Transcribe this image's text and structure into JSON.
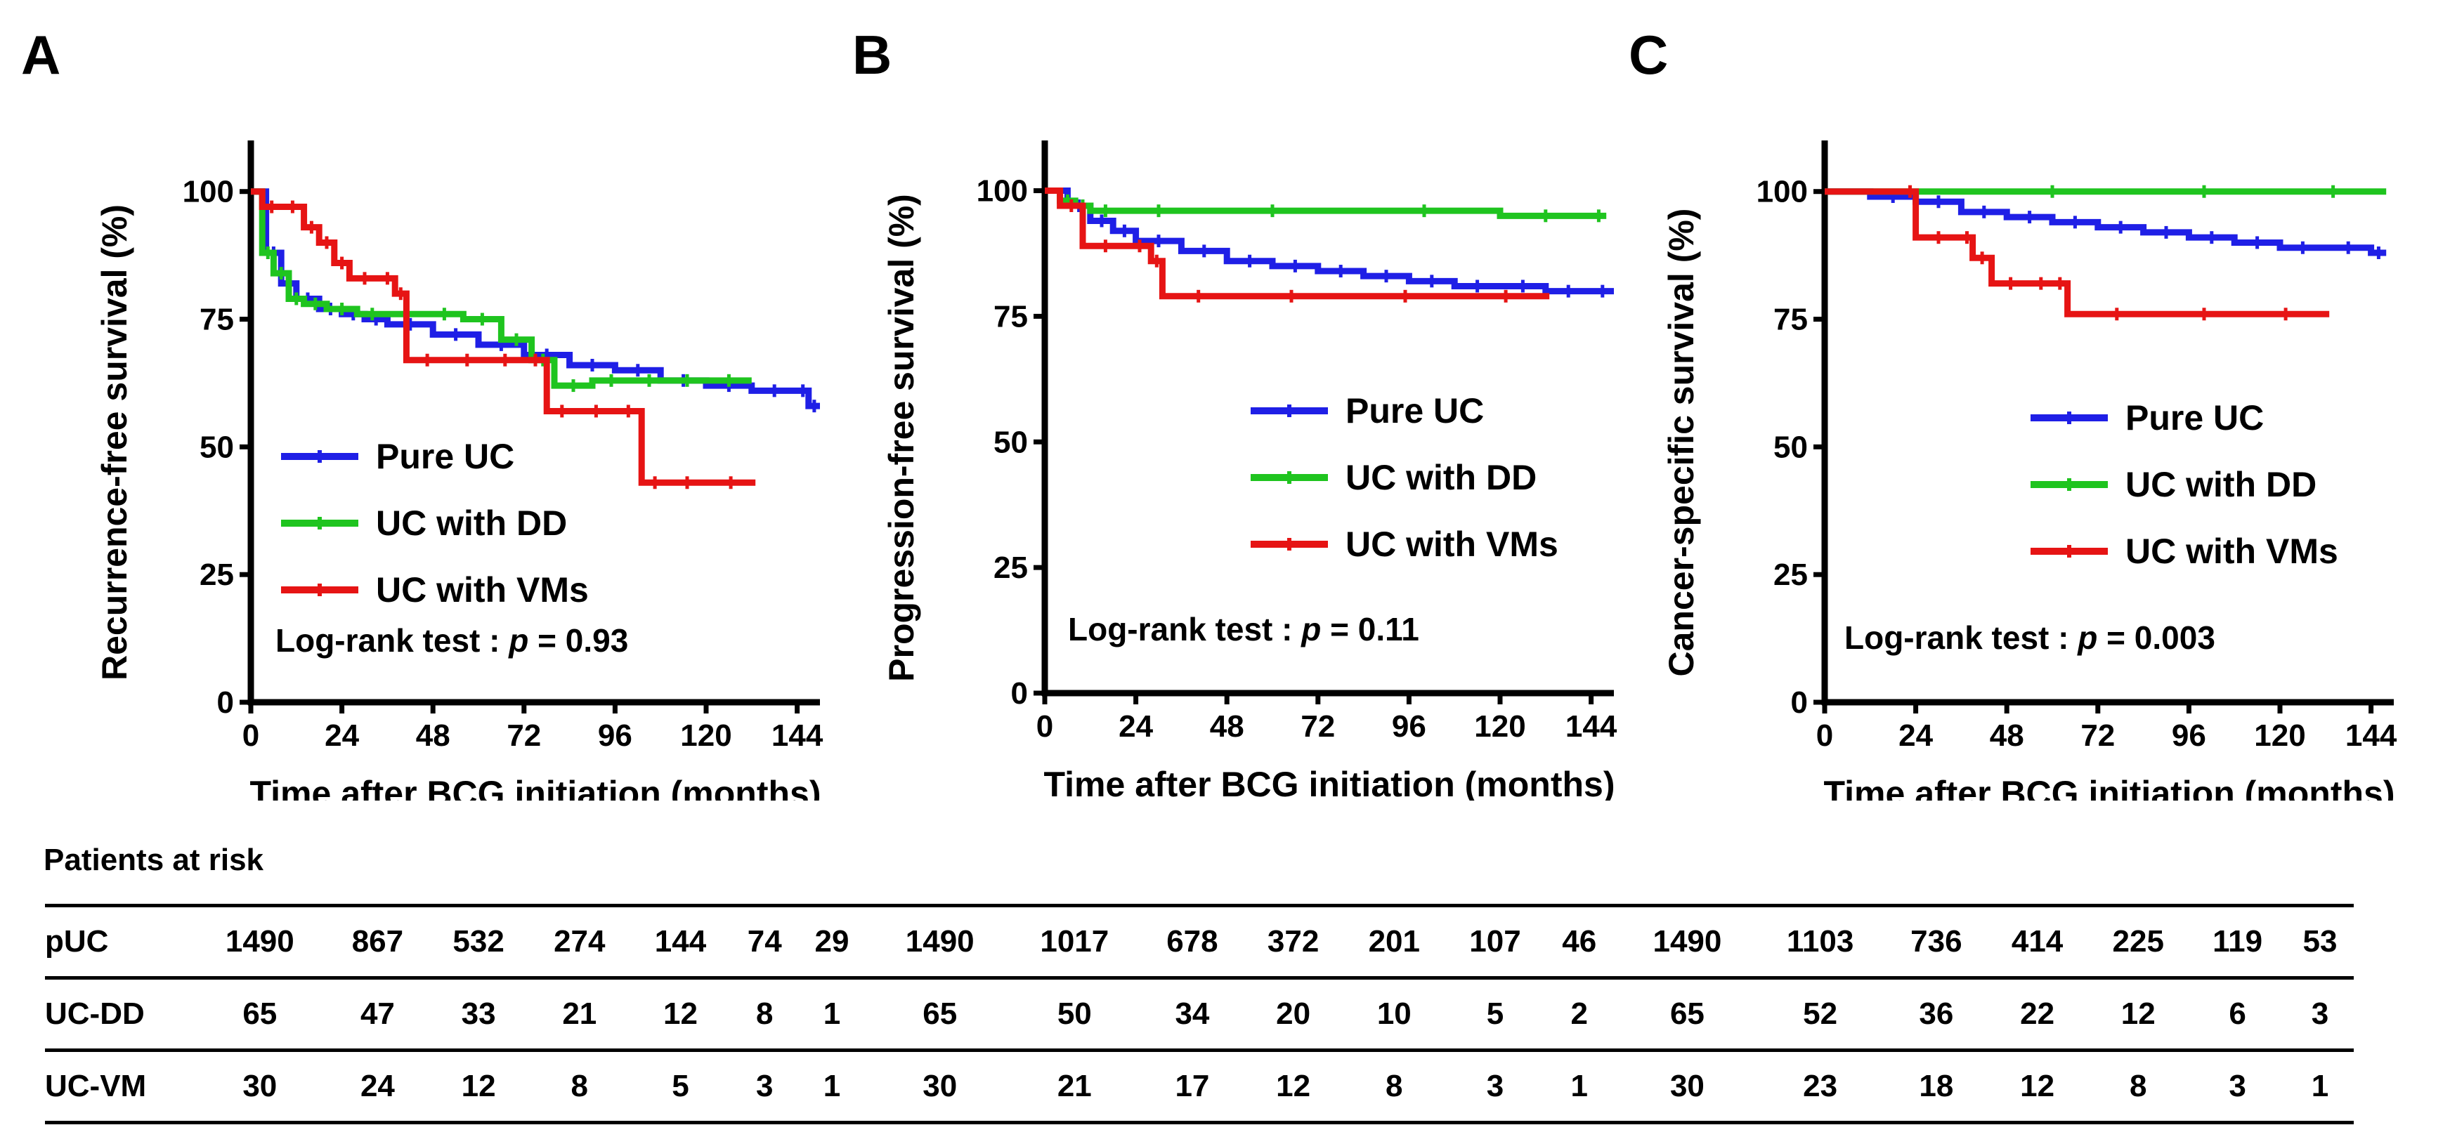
{
  "chart_data": [
    {
      "type": "line",
      "panel_label": "A",
      "ylabel": "Recurrence-free survival (%)",
      "xlabel": "Time after BCG initiation (months)",
      "xlim": [
        0,
        150
      ],
      "ylim": [
        0,
        110
      ],
      "xticks": [
        0,
        24,
        48,
        72,
        96,
        120,
        144
      ],
      "yticks": [
        0,
        25,
        50,
        75,
        100
      ],
      "annotation": "Log-rank test :",
      "p_symbol": "p",
      "p_text": " = 0.93",
      "series": [
        {
          "name": "Pure UC",
          "color": "#1f1fe6",
          "x": [
            0,
            4,
            8,
            12,
            18,
            24,
            30,
            36,
            48,
            60,
            72,
            84,
            96,
            108,
            120,
            132,
            144,
            147,
            150
          ],
          "y": [
            100,
            88,
            82,
            79,
            77,
            76,
            75,
            74,
            72,
            70,
            68,
            66,
            65,
            63,
            62,
            61,
            61,
            58,
            58
          ]
        },
        {
          "name": "UC with DD",
          "color": "#1fc41f",
          "x": [
            0,
            3,
            6,
            10,
            14,
            20,
            28,
            36,
            46,
            56,
            66,
            74,
            80,
            90,
            100,
            110,
            120,
            132
          ],
          "y": [
            100,
            88,
            84,
            79,
            78,
            77,
            76,
            76,
            76,
            75,
            71,
            67,
            62,
            63,
            63,
            63,
            63,
            63
          ]
        },
        {
          "name": "UC with VMs",
          "color": "#e61414",
          "x": [
            0,
            3,
            8,
            14,
            18,
            22,
            26,
            34,
            38,
            41,
            52,
            62,
            72,
            78,
            86,
            96,
            103,
            110,
            120,
            133
          ],
          "y": [
            100,
            97,
            97,
            93,
            90,
            86,
            83,
            83,
            80,
            67,
            67,
            67,
            67,
            57,
            57,
            57,
            43,
            43,
            43,
            43
          ]
        }
      ]
    },
    {
      "type": "line",
      "panel_label": "B",
      "ylabel": "Progression-free survival (%)",
      "xlabel": "Time after BCG initiation (months)",
      "xlim": [
        0,
        150
      ],
      "ylim": [
        0,
        110
      ],
      "xticks": [
        0,
        24,
        48,
        72,
        96,
        120,
        144
      ],
      "yticks": [
        0,
        25,
        50,
        75,
        100
      ],
      "annotation": "Log-rank test :",
      "p_symbol": "p",
      "p_text": " = 0.11",
      "series": [
        {
          "name": "Pure UC",
          "color": "#1f1fe6",
          "x": [
            0,
            6,
            12,
            18,
            24,
            36,
            48,
            60,
            72,
            84,
            96,
            108,
            120,
            132,
            144,
            150
          ],
          "y": [
            100,
            97,
            94,
            92,
            90,
            88,
            86,
            85,
            84,
            83,
            82,
            81,
            81,
            80,
            80,
            80
          ]
        },
        {
          "name": "UC with DD",
          "color": "#1fc41f",
          "x": [
            0,
            4,
            8,
            12,
            20,
            40,
            80,
            120,
            144,
            148
          ],
          "y": [
            100,
            98,
            97,
            96,
            96,
            96,
            96,
            95,
            95,
            95
          ]
        },
        {
          "name": "UC with VMs",
          "color": "#e61414",
          "x": [
            0,
            4,
            10,
            22,
            28,
            31,
            50,
            80,
            110,
            133
          ],
          "y": [
            100,
            97,
            89,
            89,
            86,
            79,
            79,
            79,
            79,
            79
          ]
        }
      ]
    },
    {
      "type": "line",
      "panel_label": "C",
      "ylabel": "Cancer-specific survival (%)",
      "xlabel": "Time after BCG initiation (months)",
      "xlim": [
        0,
        150
      ],
      "ylim": [
        0,
        110
      ],
      "xticks": [
        0,
        24,
        48,
        72,
        96,
        120,
        144
      ],
      "yticks": [
        0,
        25,
        50,
        75,
        100
      ],
      "annotation": "Log-rank test :",
      "p_symbol": "p",
      "p_text": " = 0.003",
      "series": [
        {
          "name": "Pure UC",
          "color": "#1f1fe6",
          "x": [
            0,
            12,
            24,
            36,
            48,
            60,
            72,
            84,
            96,
            108,
            120,
            132,
            144,
            148
          ],
          "y": [
            100,
            99,
            98,
            96,
            95,
            94,
            93,
            92,
            91,
            90,
            89,
            89,
            88,
            88
          ]
        },
        {
          "name": "UC with DD",
          "color": "#1fc41f",
          "x": [
            0,
            40,
            80,
            120,
            148
          ],
          "y": [
            100,
            100,
            100,
            100,
            100
          ]
        },
        {
          "name": "UC with VMs",
          "color": "#e61414",
          "x": [
            0,
            21,
            24,
            36,
            39,
            44,
            54,
            60,
            64,
            90,
            110,
            133
          ],
          "y": [
            100,
            100,
            91,
            91,
            87,
            82,
            82,
            82,
            76,
            76,
            76,
            76
          ]
        }
      ]
    }
  ],
  "risk_table": {
    "title": "Patients at risk",
    "rows": [
      {
        "label": "pUC",
        "a": [
          "1490",
          "867",
          "532",
          "274",
          "144",
          "74",
          "29"
        ],
        "b": [
          "1490",
          "1017",
          "678",
          "372",
          "201",
          "107",
          "46"
        ],
        "c": [
          "1490",
          "1103",
          "736",
          "414",
          "225",
          "119",
          "53"
        ]
      },
      {
        "label": "UC-DD",
        "a": [
          "65",
          "47",
          "33",
          "21",
          "12",
          "8",
          "1"
        ],
        "b": [
          "65",
          "50",
          "34",
          "20",
          "10",
          "5",
          "2"
        ],
        "c": [
          "65",
          "52",
          "36",
          "22",
          "12",
          "6",
          "3"
        ]
      },
      {
        "label": "UC-VM",
        "a": [
          "30",
          "24",
          "12",
          "8",
          "5",
          "3",
          "1"
        ],
        "b": [
          "30",
          "21",
          "17",
          "12",
          "8",
          "3",
          "1"
        ],
        "c": [
          "30",
          "23",
          "18",
          "12",
          "8",
          "3",
          "1"
        ]
      }
    ]
  }
}
